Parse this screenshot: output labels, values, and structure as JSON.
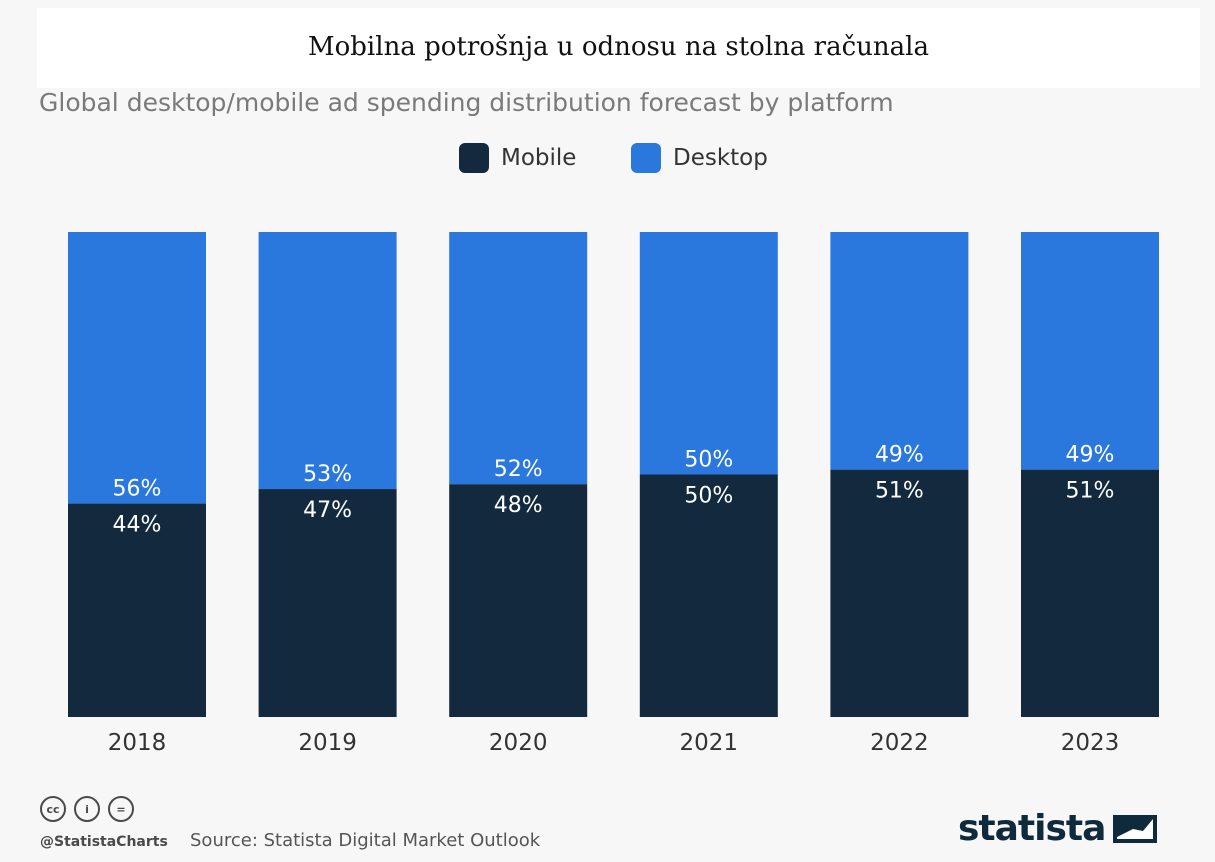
{
  "document": {
    "title": "Mobilna potrošnja u odnosu na stolna računala"
  },
  "chart_data": {
    "type": "bar",
    "stacked": true,
    "normalized_percent": true,
    "title": "Global desktop/mobile ad spending distribution forecast by platform",
    "xlabel": "",
    "ylabel": "",
    "ylim": [
      0,
      100
    ],
    "grid": false,
    "legend_position": "top-center",
    "categories": [
      "2018",
      "2019",
      "2020",
      "2021",
      "2022",
      "2023"
    ],
    "series": [
      {
        "name": "Mobile",
        "color": "#132a3e",
        "values": [
          44,
          47,
          48,
          50,
          51,
          51
        ],
        "labels": [
          "44%",
          "47%",
          "48%",
          "50%",
          "51%",
          "51%"
        ]
      },
      {
        "name": "Desktop",
        "color": "#2a78de",
        "values": [
          56,
          53,
          52,
          50,
          49,
          49
        ],
        "labels": [
          "56%",
          "53%",
          "52%",
          "50%",
          "49%",
          "49%"
        ]
      }
    ]
  },
  "footer": {
    "cc_icons": [
      "cc-icon",
      "attribution-icon",
      "no-derivatives-icon"
    ],
    "cc_glyphs": [
      "cc",
      "i",
      "="
    ],
    "handle": "@StatistaCharts",
    "source": "Source: Statista Digital Market Outlook",
    "brand": "statista",
    "brand_mark_icon": "statista-logo-icon"
  }
}
